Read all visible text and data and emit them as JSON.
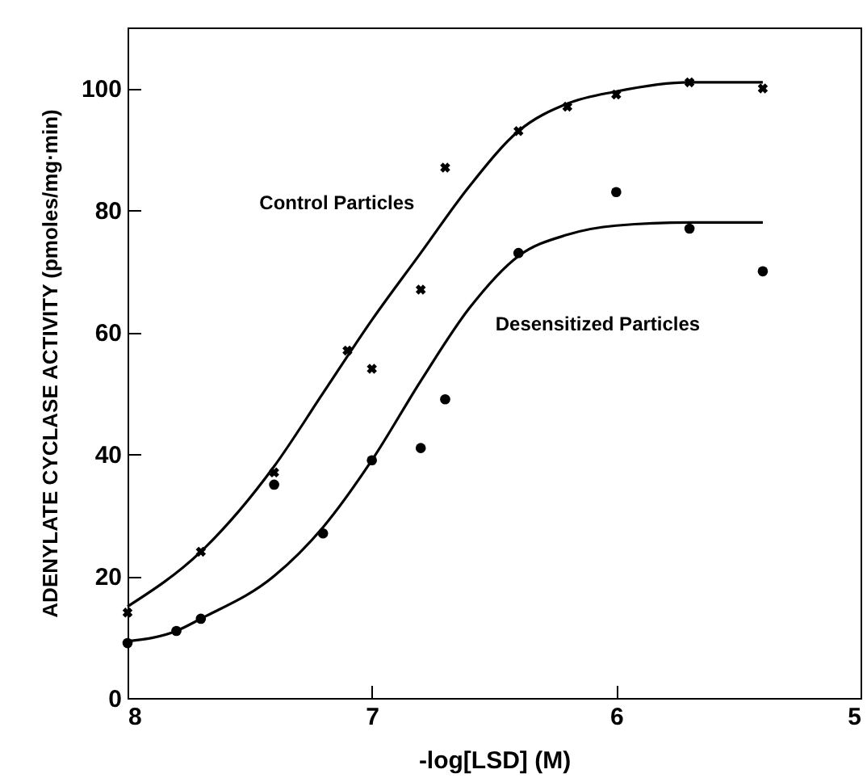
{
  "chart_data": {
    "type": "scatter",
    "xlabel": "-log[LSD] (M)",
    "ylabel": "ADENYLATE CYCLASE ACTIVITY (pmoles/mg·min)",
    "xlim": [
      8,
      5
    ],
    "xticks": [
      8,
      7,
      6,
      5
    ],
    "ylim": [
      0,
      110
    ],
    "yticks": [
      0,
      20,
      40,
      60,
      80,
      100
    ],
    "series": [
      {
        "marker": "cross",
        "color": "#000000",
        "x": [
          8,
          7.7,
          7.4,
          7.1,
          7.0,
          6.8,
          6.7,
          6.4,
          6.2,
          6.0,
          5.7,
          5.4
        ],
        "values": [
          14,
          24,
          37,
          57,
          54,
          67,
          87,
          93,
          97,
          99,
          101,
          100
        ]
      },
      {
        "marker": "circle",
        "color": "#000000",
        "x": [
          8,
          7.8,
          7.7,
          7.4,
          7.2,
          7.0,
          6.8,
          6.7,
          6.4,
          6.0,
          5.7,
          5.4
        ],
        "values": [
          9,
          11,
          13,
          35,
          27,
          39,
          41,
          49,
          73,
          83,
          77,
          70
        ]
      },
      {
        "type": "line",
        "marker": "none",
        "color": "#000000",
        "x": [
          8,
          7.7,
          7.4,
          7.2,
          7.0,
          6.8,
          6.6,
          6.4,
          6.2,
          6.0,
          5.7,
          5.4
        ],
        "values": [
          15,
          24,
          38,
          50,
          62,
          73,
          84,
          93,
          97.5,
          99.5,
          101,
          101
        ]
      },
      {
        "type": "line",
        "marker": "none",
        "color": "#000000",
        "x": [
          8,
          7.8,
          7.7,
          7.4,
          7.2,
          7.0,
          6.8,
          6.6,
          6.4,
          6.2,
          6.0,
          5.7,
          5.4
        ],
        "values": [
          9.3,
          11,
          13,
          20,
          28,
          39,
          52,
          64,
          72.5,
          76,
          77.5,
          78,
          78
        ]
      }
    ],
    "annotations": [
      {
        "text": "Control Particles",
        "x": 6.72,
        "y": 78
      },
      {
        "text": "Desensitized Particles",
        "x": 6.6,
        "y": 64
      }
    ]
  }
}
